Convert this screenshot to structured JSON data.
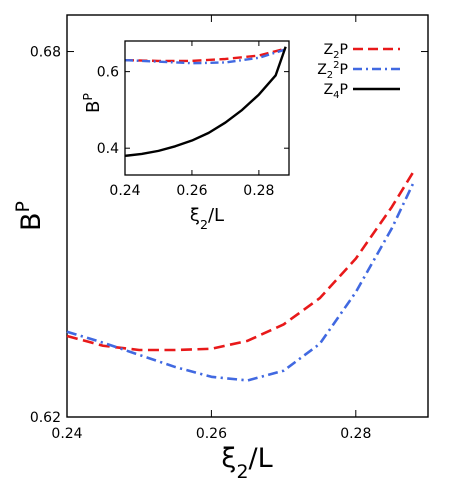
{
  "chart_data": [
    {
      "type": "line",
      "role": "main",
      "xlabel": "ξ2/L",
      "ylabel": "BP",
      "xlim": [
        0.24,
        0.29
      ],
      "ylim": [
        0.62,
        0.686
      ],
      "xticks": [
        "0.24",
        "0.26",
        "0.28"
      ],
      "yticks": [
        "0.62",
        "0.68"
      ],
      "grid": false,
      "series": [
        {
          "name": "Z2P",
          "color": "#e8191a",
          "style": "dashed",
          "x": [
            0.24,
            0.245,
            0.25,
            0.255,
            0.26,
            0.265,
            0.27,
            0.275,
            0.28,
            0.285,
            0.288
          ],
          "y": [
            0.6333,
            0.6317,
            0.631,
            0.631,
            0.6312,
            0.6325,
            0.6352,
            0.6395,
            0.646,
            0.6545,
            0.6603
          ]
        },
        {
          "name": "Z2²P",
          "color": "#4169e1",
          "style": "dashdot",
          "x": [
            0.24,
            0.245,
            0.25,
            0.255,
            0.26,
            0.265,
            0.27,
            0.275,
            0.28,
            0.285,
            0.288
          ],
          "y": [
            0.634,
            0.6322,
            0.6302,
            0.6282,
            0.6266,
            0.626,
            0.6276,
            0.632,
            0.6405,
            0.651,
            0.6585
          ]
        }
      ]
    },
    {
      "type": "line",
      "role": "inset",
      "legend_position": "top-right",
      "xlabel": "ξ2/L",
      "ylabel": "BP",
      "xlim": [
        0.24,
        0.289
      ],
      "ylim": [
        0.33,
        0.68
      ],
      "xticks": [
        "0.24",
        "0.26",
        "0.28"
      ],
      "yticks": [
        "0.4",
        "0.6"
      ],
      "grid": false,
      "series": [
        {
          "name": "Z2P",
          "color": "#e8191a",
          "style": "dashed",
          "x": [
            0.24,
            0.25,
            0.26,
            0.27,
            0.28,
            0.288
          ],
          "y": [
            0.63,
            0.628,
            0.628,
            0.633,
            0.642,
            0.66
          ]
        },
        {
          "name": "Z2²P",
          "color": "#4169e1",
          "style": "dashdot",
          "x": [
            0.24,
            0.25,
            0.26,
            0.27,
            0.28,
            0.288
          ],
          "y": [
            0.63,
            0.626,
            0.622,
            0.624,
            0.636,
            0.658
          ]
        },
        {
          "name": "Z4P",
          "color": "#000000",
          "style": "solid",
          "x": [
            0.24,
            0.245,
            0.25,
            0.255,
            0.26,
            0.265,
            0.27,
            0.275,
            0.28,
            0.285,
            0.288
          ],
          "y": [
            0.38,
            0.385,
            0.393,
            0.405,
            0.42,
            0.44,
            0.467,
            0.5,
            0.54,
            0.59,
            0.665
          ]
        }
      ]
    }
  ]
}
